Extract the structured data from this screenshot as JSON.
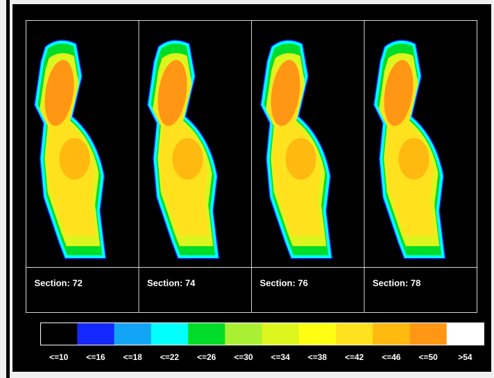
{
  "sections": [
    {
      "label": "Section: 72"
    },
    {
      "label": "Section: 74"
    },
    {
      "label": "Section: 76"
    },
    {
      "label": "Section: 78"
    }
  ],
  "legend": [
    {
      "label": "<=10",
      "color": "#000000"
    },
    {
      "label": "<=16",
      "color": "#1428ff"
    },
    {
      "label": "<=18",
      "color": "#12a5f5"
    },
    {
      "label": "<=22",
      "color": "#00ffff"
    },
    {
      "label": "<=26",
      "color": "#00dc28"
    },
    {
      "label": "<=30",
      "color": "#aaf032"
    },
    {
      "label": "<=34",
      "color": "#ddf51e"
    },
    {
      "label": "<=38",
      "color": "#ffff14"
    },
    {
      "label": "<=42",
      "color": "#ffe11e"
    },
    {
      "label": "<=46",
      "color": "#ffb90f"
    },
    {
      "label": "<=50",
      "color": "#ff9614"
    },
    {
      "label": ">54",
      "color": "#ffffff"
    }
  ]
}
